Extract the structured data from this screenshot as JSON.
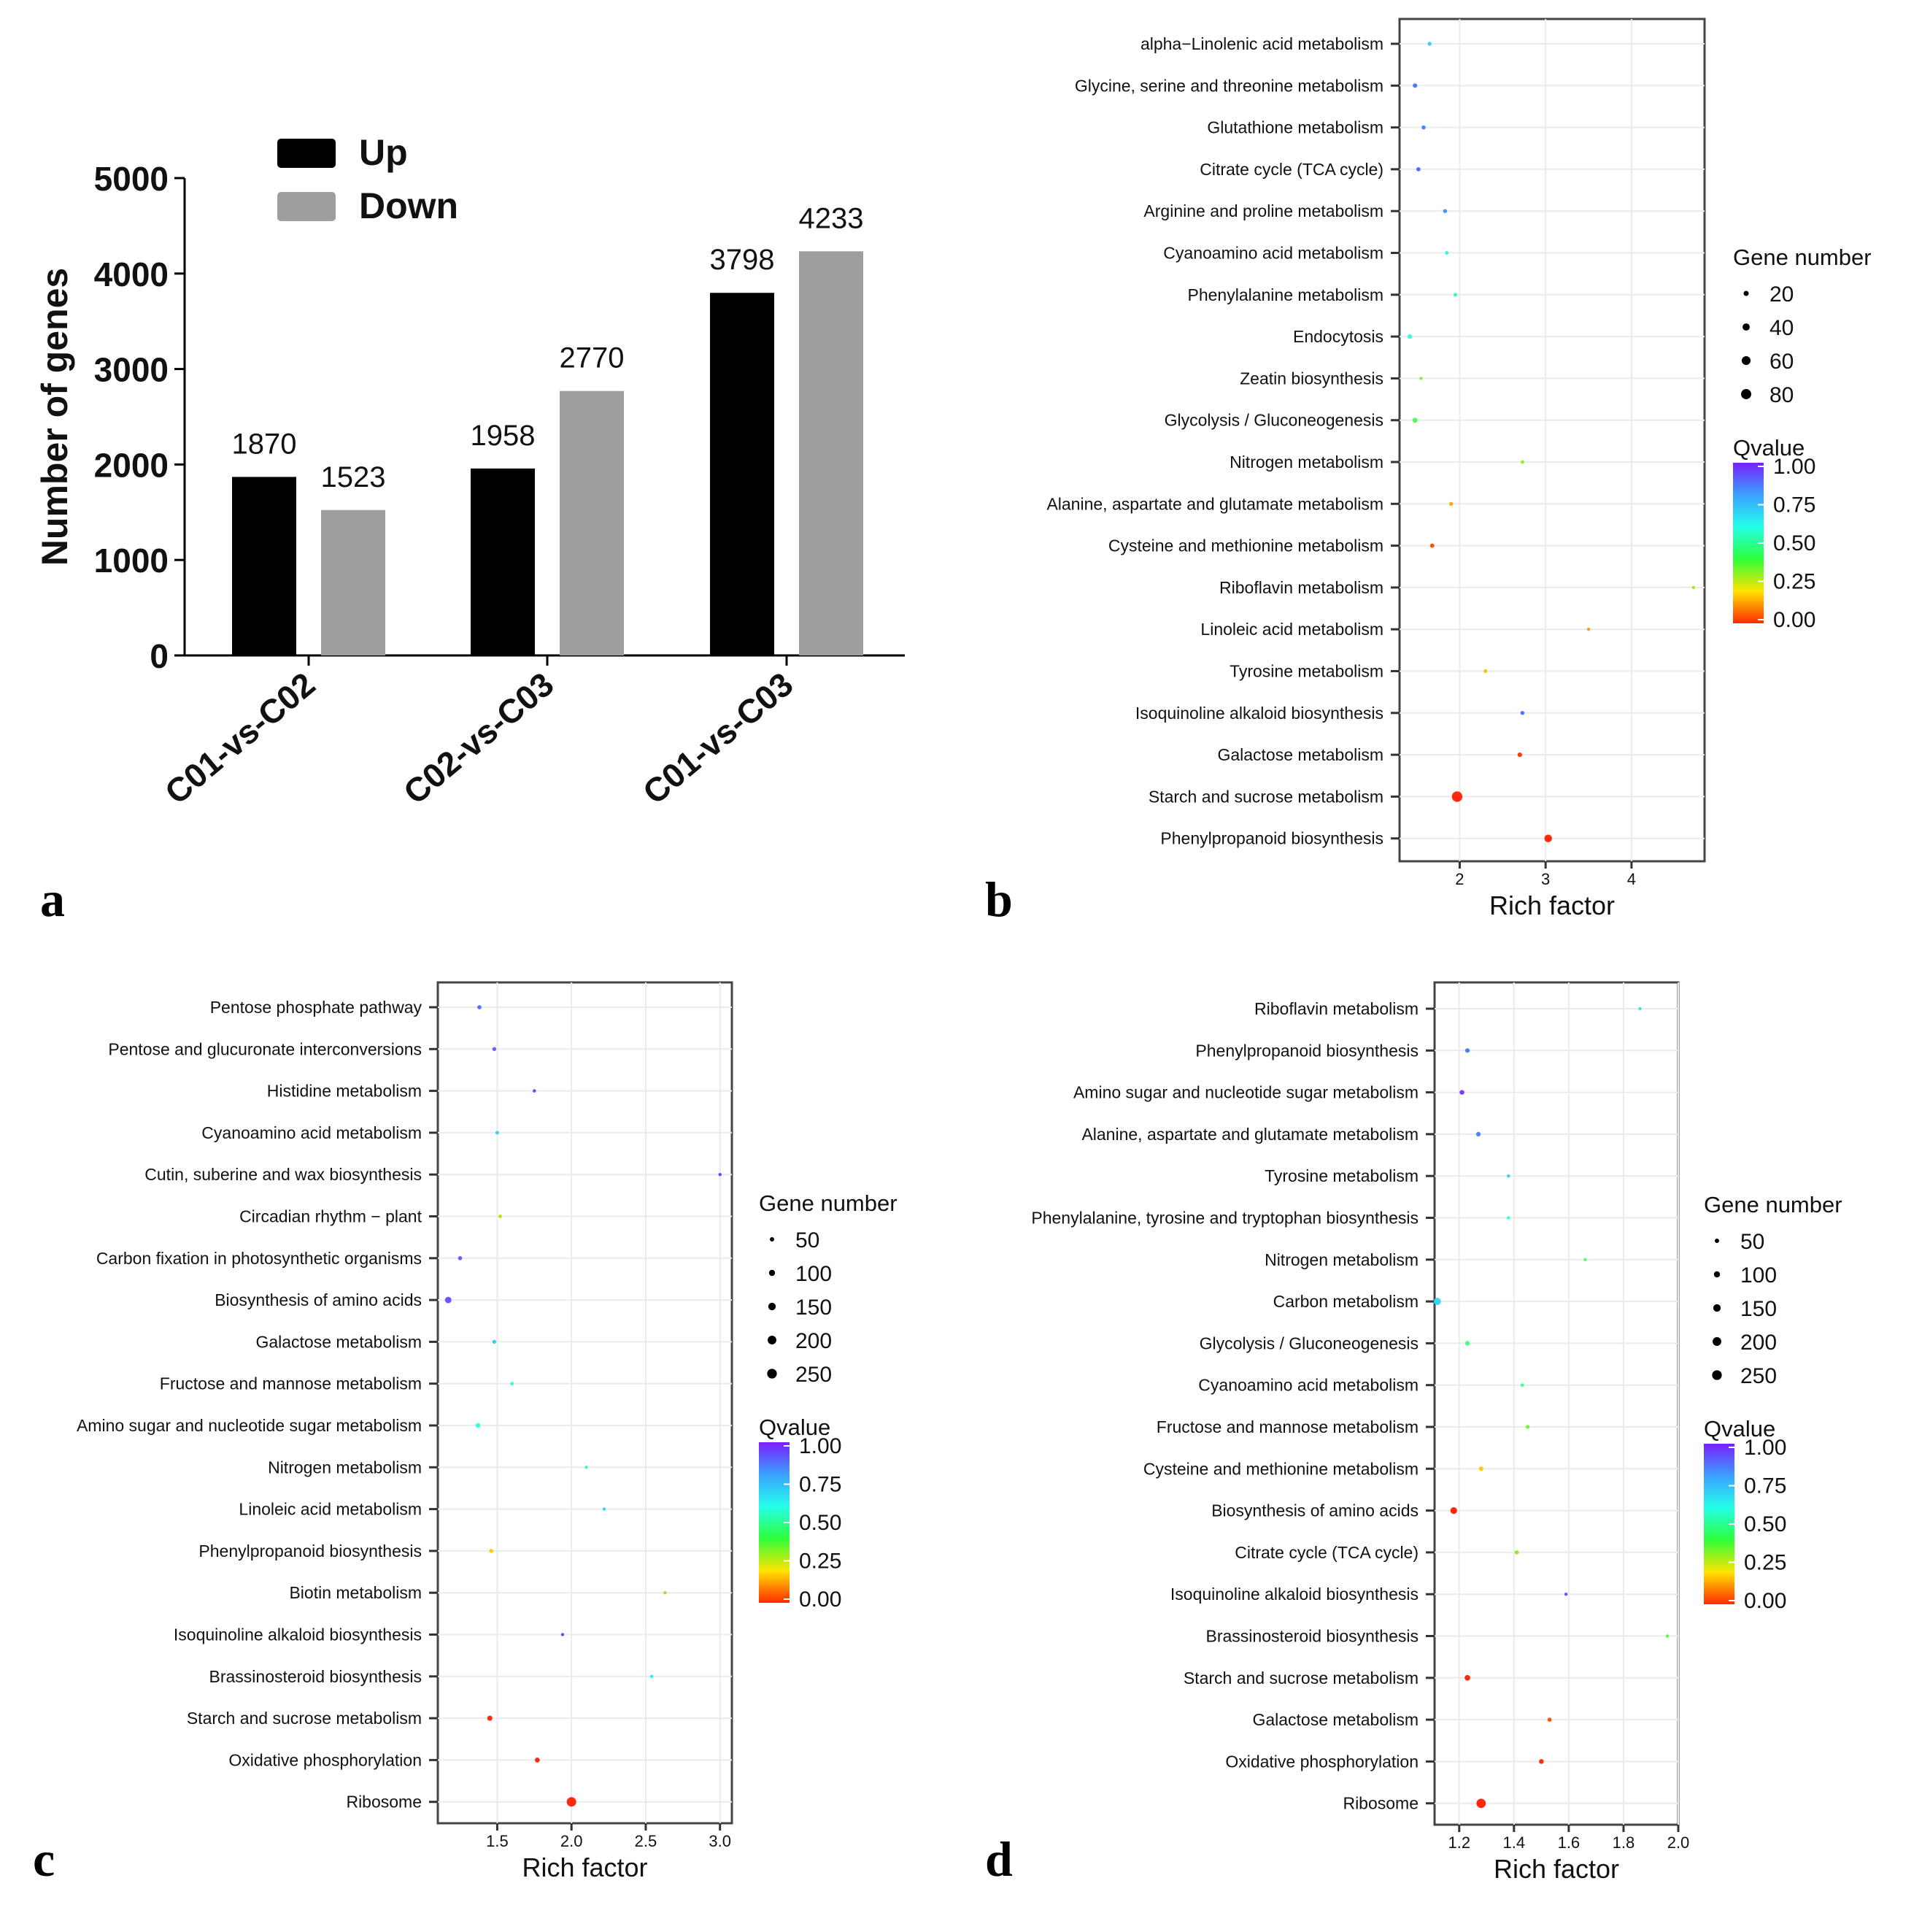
{
  "figure": {
    "labels": [
      "a",
      "b",
      "c",
      "d"
    ]
  },
  "chart_data": [
    {
      "id": "a",
      "type": "bar",
      "title": "",
      "xlabel": "",
      "ylabel": "Number of genes",
      "ylim": [
        0,
        5000
      ],
      "yticks": [
        "0",
        "1000",
        "2000",
        "3000",
        "4000",
        "5000"
      ],
      "categories": [
        "C01-vs-C02",
        "C02-vs-C03",
        "C01-vs-C03"
      ],
      "series": [
        {
          "name": "Up",
          "color": "#000000",
          "values": [
            1870,
            1958,
            3798
          ]
        },
        {
          "name": "Down",
          "color": "#9e9e9e",
          "values": [
            1523,
            2770,
            4233
          ]
        }
      ],
      "data_labels": [
        [
          "1870",
          "1958",
          "3798"
        ],
        [
          "1523",
          "2770",
          "4233"
        ]
      ],
      "legend": "top-left"
    },
    {
      "id": "b",
      "type": "scatter",
      "xlabel": "Rich factor",
      "xlim": [
        1.3,
        4.85
      ],
      "xticks": [
        "2",
        "3",
        "4"
      ],
      "pathways": [
        "alpha−Linolenic acid metabolism",
        "Glycine, serine and threonine metabolism",
        "Glutathione metabolism",
        "Citrate cycle (TCA cycle)",
        "Arginine and proline metabolism",
        "Cyanoamino acid metabolism",
        "Phenylalanine metabolism",
        "Endocytosis",
        "Zeatin biosynthesis",
        "Glycolysis / Gluconeogenesis",
        "Nitrogen metabolism",
        "Alanine, aspartate and glutamate metabolism",
        "Cysteine and methionine metabolism",
        "Riboflavin metabolism",
        "Linoleic acid metabolism",
        "Tyrosine metabolism",
        "Isoquinoline alkaloid biosynthesis",
        "Galactose metabolism",
        "Starch and sucrose metabolism",
        "Phenylpropanoid biosynthesis"
      ],
      "rich_factor": [
        1.65,
        1.48,
        1.58,
        1.52,
        1.83,
        1.85,
        1.95,
        1.42,
        1.55,
        1.48,
        2.73,
        1.9,
        1.68,
        4.72,
        3.5,
        2.3,
        2.73,
        2.7,
        1.97,
        3.03
      ],
      "gene_number": [
        12,
        15,
        13,
        14,
        12,
        10,
        11,
        16,
        8,
        20,
        8,
        12,
        14,
        6,
        8,
        10,
        12,
        16,
        85,
        45
      ],
      "qvalue": [
        0.62,
        0.82,
        0.8,
        0.85,
        0.76,
        0.52,
        0.45,
        0.48,
        0.3,
        0.38,
        0.32,
        0.16,
        0.05,
        0.3,
        0.14,
        0.18,
        0.85,
        0.02,
        0.0,
        0.0
      ],
      "size_legend": {
        "title": "Gene number",
        "values": [
          "20",
          "40",
          "60",
          "80"
        ]
      },
      "color_legend": {
        "title": "Qvalue",
        "ticks": [
          "1.00",
          "0.75",
          "0.50",
          "0.25",
          "0.00"
        ],
        "colors": [
          "#7b1fff",
          "#3aa0ff",
          "#25ffea",
          "#2dff3a",
          "#ffe400",
          "#ff2a00"
        ]
      }
    },
    {
      "id": "c",
      "type": "scatter",
      "xlabel": "Rich factor",
      "xlim": [
        1.1,
        3.08
      ],
      "xticks": [
        "1.5",
        "2.0",
        "2.5",
        "3.0"
      ],
      "pathways": [
        "Pentose phosphate pathway",
        "Pentose and glucuronate interconversions",
        "Histidine metabolism",
        "Cyanoamino acid metabolism",
        "Cutin, suberine and wax biosynthesis",
        "Circadian rhythm − plant",
        "Carbon fixation in photosynthetic organisms",
        "Biosynthesis of amino acids",
        "Galactose metabolism",
        "Fructose and mannose metabolism",
        "Amino sugar and nucleotide sugar metabolism",
        "Nitrogen metabolism",
        "Linoleic acid metabolism",
        "Phenylpropanoid biosynthesis",
        "Biotin metabolism",
        "Isoquinoline alkaloid biosynthesis",
        "Brassinosteroid biosynthesis",
        "Starch and sucrose metabolism",
        "Oxidative phosphorylation",
        "Ribosome"
      ],
      "rich_factor": [
        1.38,
        1.48,
        1.75,
        1.5,
        3.0,
        1.52,
        1.25,
        1.17,
        1.48,
        1.6,
        1.37,
        2.1,
        2.22,
        1.46,
        2.63,
        1.94,
        2.54,
        1.45,
        1.77,
        2.0
      ],
      "gene_number": [
        45,
        40,
        30,
        35,
        20,
        35,
        45,
        110,
        40,
        35,
        60,
        25,
        20,
        45,
        15,
        25,
        20,
        70,
        65,
        240
      ],
      "qvalue": [
        0.85,
        0.88,
        0.93,
        0.6,
        0.95,
        0.25,
        0.88,
        0.9,
        0.62,
        0.48,
        0.5,
        0.45,
        0.6,
        0.2,
        0.3,
        0.95,
        0.55,
        0.0,
        0.0,
        0.0
      ],
      "size_legend": {
        "title": "Gene number",
        "values": [
          "50",
          "100",
          "150",
          "200",
          "250"
        ]
      },
      "color_legend": {
        "title": "Qvalue",
        "ticks": [
          "1.00",
          "0.75",
          "0.50",
          "0.25",
          "0.00"
        ],
        "colors": [
          "#7b1fff",
          "#3aa0ff",
          "#25ffea",
          "#2dff3a",
          "#ffe400",
          "#ff2a00"
        ]
      }
    },
    {
      "id": "d",
      "type": "scatter",
      "xlabel": "Rich factor",
      "xlim": [
        1.11,
        2.0
      ],
      "xticks": [
        "1.2",
        "1.4",
        "1.6",
        "1.8",
        "2.0"
      ],
      "pathways": [
        "Riboflavin metabolism",
        "Phenylpropanoid biosynthesis",
        "Amino sugar and nucleotide sugar metabolism",
        "Alanine, aspartate and glutamate metabolism",
        "Tyrosine metabolism",
        "Phenylalanine, tyrosine and tryptophan biosynthesis",
        "Nitrogen metabolism",
        "Carbon metabolism",
        "Glycolysis / Gluconeogenesis",
        "Cyanoamino acid metabolism",
        "Fructose and mannose metabolism",
        "Cysteine and methionine metabolism",
        "Biosynthesis of amino acids",
        "Citrate cycle (TCA cycle)",
        "Isoquinoline alkaloid biosynthesis",
        "Brassinosteroid biosynthesis",
        "Starch and sucrose metabolism",
        "Galactose metabolism",
        "Oxidative phosphorylation",
        "Ribosome"
      ],
      "rich_factor": [
        1.86,
        1.23,
        1.21,
        1.27,
        1.38,
        1.38,
        1.66,
        1.12,
        1.23,
        1.43,
        1.45,
        1.28,
        1.18,
        1.41,
        1.59,
        1.96,
        1.23,
        1.53,
        1.5,
        1.28
      ],
      "gene_number": [
        25,
        55,
        60,
        55,
        30,
        30,
        25,
        140,
        60,
        30,
        40,
        55,
        120,
        45,
        30,
        20,
        85,
        45,
        60,
        230
      ],
      "qvalue": [
        0.55,
        0.82,
        0.95,
        0.8,
        0.6,
        0.5,
        0.4,
        0.6,
        0.42,
        0.42,
        0.32,
        0.2,
        0.0,
        0.3,
        0.88,
        0.35,
        0.0,
        0.05,
        0.0,
        0.0
      ],
      "size_legend": {
        "title": "Gene number",
        "values": [
          "50",
          "100",
          "150",
          "200",
          "250"
        ]
      },
      "color_legend": {
        "title": "Qvalue",
        "ticks": [
          "1.00",
          "0.75",
          "0.50",
          "0.25",
          "0.00"
        ],
        "colors": [
          "#7b1fff",
          "#3aa0ff",
          "#25ffea",
          "#2dff3a",
          "#ffe400",
          "#ff2a00"
        ]
      }
    }
  ]
}
